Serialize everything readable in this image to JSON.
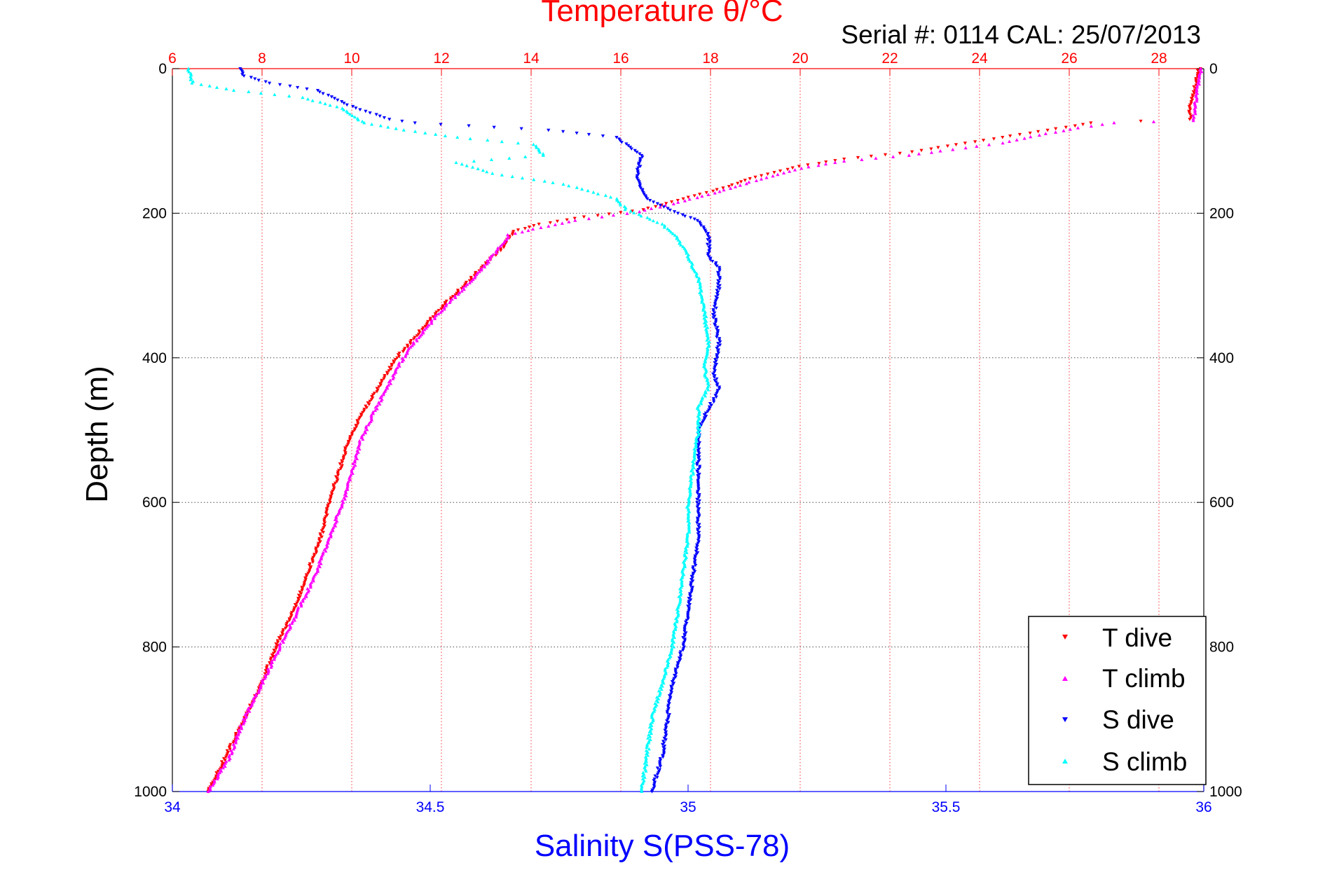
{
  "chart_data": {
    "type": "scatter",
    "title": "Temperature θ/°C",
    "subtitle": "Serial #: 0114  CAL: 25/07/2013",
    "ylabel": "Depth (m)",
    "xlabel": "Salinity S(PSS-78)",
    "ylim": [
      0,
      1000
    ],
    "y_reversed": true,
    "yticks": [
      0,
      200,
      400,
      600,
      800,
      1000
    ],
    "temperature_axis": {
      "position": "top",
      "lim": [
        6,
        29
      ],
      "ticks": [
        6,
        8,
        10,
        12,
        14,
        16,
        18,
        20,
        22,
        24,
        26,
        28
      ],
      "color": "#ff0000"
    },
    "salinity_axis": {
      "position": "bottom",
      "lim": [
        34,
        36
      ],
      "ticks": [
        34,
        34.5,
        35,
        35.5,
        36
      ],
      "color": "#0000ff"
    },
    "grid": true,
    "legend_position": "bottom-right",
    "series": [
      {
        "name": "T dive",
        "axis": "temperature",
        "marker": "triangle-down",
        "color": "#ff0000",
        "points": [
          [
            28.9,
            0
          ],
          [
            28.8,
            25
          ],
          [
            28.7,
            50
          ],
          [
            28.7,
            70
          ],
          [
            26.5,
            75
          ],
          [
            25.5,
            85
          ],
          [
            24.5,
            95
          ],
          [
            23.5,
            105
          ],
          [
            22.5,
            115
          ],
          [
            21,
            125
          ],
          [
            20,
            135
          ],
          [
            19,
            150
          ],
          [
            18.3,
            165
          ],
          [
            17.4,
            180
          ],
          [
            16.5,
            195
          ],
          [
            15.2,
            205
          ],
          [
            14.2,
            215
          ],
          [
            13.6,
            225
          ],
          [
            13.4,
            245
          ],
          [
            12.9,
            275
          ],
          [
            12.5,
            300
          ],
          [
            12,
            330
          ],
          [
            11.5,
            365
          ],
          [
            11,
            400
          ],
          [
            10.6,
            440
          ],
          [
            10.2,
            480
          ],
          [
            9.9,
            520
          ],
          [
            9.7,
            560
          ],
          [
            9.5,
            600
          ],
          [
            9.3,
            650
          ],
          [
            9,
            700
          ],
          [
            8.7,
            750
          ],
          [
            8.3,
            800
          ],
          [
            8,
            850
          ],
          [
            7.6,
            900
          ],
          [
            7.2,
            950
          ],
          [
            6.8,
            1000
          ]
        ]
      },
      {
        "name": "T climb",
        "axis": "temperature",
        "marker": "triangle-up",
        "color": "#ff00ff",
        "points": [
          [
            28.95,
            0
          ],
          [
            28.85,
            30
          ],
          [
            28.8,
            60
          ],
          [
            28.75,
            72
          ],
          [
            27,
            75
          ],
          [
            26.2,
            82
          ],
          [
            25.5,
            90
          ],
          [
            24.5,
            103
          ],
          [
            23.4,
            112
          ],
          [
            22.4,
            120
          ],
          [
            21,
            128
          ],
          [
            20,
            138
          ],
          [
            19,
            155
          ],
          [
            18.2,
            170
          ],
          [
            17.3,
            185
          ],
          [
            16.4,
            198
          ],
          [
            15,
            210
          ],
          [
            14.2,
            220
          ],
          [
            13.5,
            230
          ],
          [
            13.2,
            255
          ],
          [
            12.8,
            285
          ],
          [
            12.4,
            310
          ],
          [
            12,
            335
          ],
          [
            11.5,
            370
          ],
          [
            11.1,
            405
          ],
          [
            10.8,
            440
          ],
          [
            10.5,
            475
          ],
          [
            10.2,
            515
          ],
          [
            10,
            560
          ],
          [
            9.8,
            600
          ],
          [
            9.5,
            650
          ],
          [
            9.2,
            700
          ],
          [
            8.8,
            750
          ],
          [
            8.4,
            800
          ],
          [
            8,
            850
          ],
          [
            7.6,
            900
          ],
          [
            7.3,
            950
          ],
          [
            6.8,
            1000
          ]
        ]
      },
      {
        "name": "S dive",
        "axis": "salinity",
        "marker": "triangle-down",
        "color": "#0000ff",
        "points": [
          [
            34.13,
            0
          ],
          [
            34.14,
            10
          ],
          [
            34.19,
            20
          ],
          [
            34.28,
            30
          ],
          [
            34.34,
            50
          ],
          [
            34.42,
            70
          ],
          [
            34.47,
            75
          ],
          [
            34.73,
            85
          ],
          [
            34.86,
            95
          ],
          [
            34.91,
            120
          ],
          [
            34.9,
            150
          ],
          [
            34.92,
            180
          ],
          [
            34.98,
            200
          ],
          [
            35.02,
            210
          ],
          [
            35.04,
            230
          ],
          [
            35.04,
            260
          ],
          [
            35.06,
            275
          ],
          [
            35.06,
            300
          ],
          [
            35.05,
            340
          ],
          [
            35.06,
            380
          ],
          [
            35.05,
            420
          ],
          [
            35.06,
            445
          ],
          [
            35.04,
            470
          ],
          [
            35.02,
            500
          ],
          [
            35.02,
            550
          ],
          [
            35.02,
            600
          ],
          [
            35.02,
            650
          ],
          [
            35.01,
            700
          ],
          [
            35.0,
            750
          ],
          [
            34.99,
            800
          ],
          [
            34.97,
            850
          ],
          [
            34.96,
            900
          ],
          [
            34.95,
            950
          ],
          [
            34.93,
            1000
          ]
        ]
      },
      {
        "name": "S climb",
        "axis": "salinity",
        "marker": "triangle-up",
        "color": "#00ffff",
        "points": [
          [
            34.03,
            0
          ],
          [
            34.04,
            20
          ],
          [
            34.12,
            30
          ],
          [
            34.25,
            40
          ],
          [
            34.33,
            55
          ],
          [
            34.35,
            65
          ],
          [
            34.37,
            75
          ],
          [
            34.45,
            85
          ],
          [
            34.55,
            95
          ],
          [
            34.7,
            105
          ],
          [
            34.72,
            120
          ],
          [
            34.55,
            130
          ],
          [
            34.62,
            145
          ],
          [
            34.76,
            160
          ],
          [
            34.86,
            180
          ],
          [
            34.88,
            195
          ],
          [
            34.95,
            215
          ],
          [
            34.98,
            235
          ],
          [
            35.0,
            260
          ],
          [
            35.02,
            290
          ],
          [
            35.03,
            330
          ],
          [
            35.04,
            380
          ],
          [
            35.03,
            410
          ],
          [
            35.04,
            440
          ],
          [
            35.02,
            470
          ],
          [
            35.02,
            500
          ],
          [
            35.01,
            550
          ],
          [
            35.0,
            600
          ],
          [
            35.0,
            650
          ],
          [
            34.99,
            700
          ],
          [
            34.98,
            750
          ],
          [
            34.97,
            800
          ],
          [
            34.95,
            850
          ],
          [
            34.93,
            900
          ],
          [
            34.92,
            950
          ],
          [
            34.91,
            1000
          ]
        ]
      }
    ]
  }
}
